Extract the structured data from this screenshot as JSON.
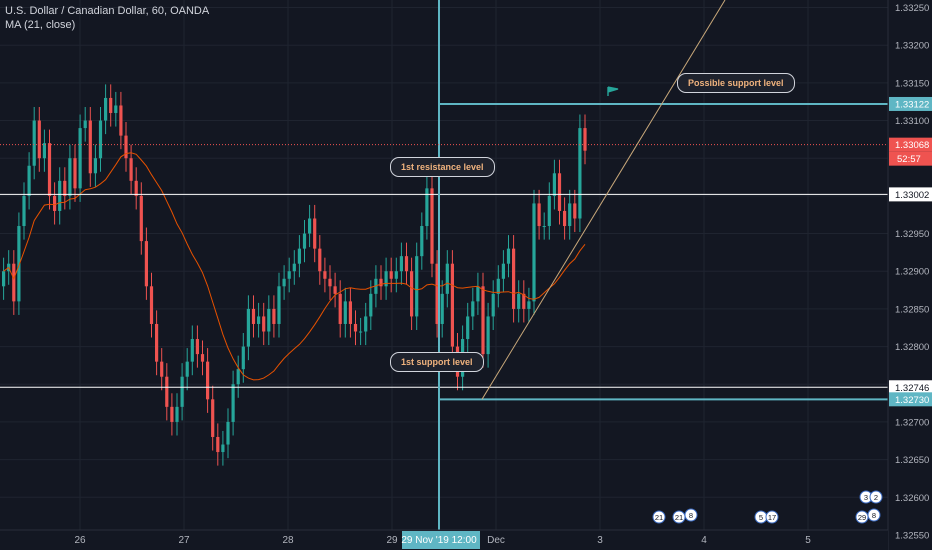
{
  "header": {
    "symbol_title": "U.S. Dollar / Canadian Dollar, 60, OANDA",
    "indicator": "MA (21, close)"
  },
  "colors": {
    "background": "#131722",
    "grid": "#1f2430",
    "up": "#26a69a",
    "down": "#ef5350",
    "ma": "#e65100",
    "level_line": "#ffffff",
    "zone_line": "#5fb6c4",
    "trendline": "#c8a87a",
    "axis_text": "#b2b5be",
    "annotation_text": "#f0b37e",
    "flag": "#26a69a"
  },
  "annotations": {
    "possible_support": "Possible support level",
    "first_resistance": "1st resistance level",
    "first_support": "1st support level"
  },
  "cursor": {
    "date_label": "29 Nov '19",
    "time_label": "12:00"
  },
  "countdown": "52:57",
  "event_markers": [
    "21",
    "21",
    "8",
    "5",
    "17",
    "3",
    "2",
    "29",
    "8"
  ],
  "chart_data": {
    "type": "candlestick",
    "title": "U.S. Dollar / Canadian Dollar, 60, OANDA",
    "indicator": "MA (21, close)",
    "ylim": [
      1.3253,
      1.3326
    ],
    "y_ticks": [
      "1.32550",
      "1.32600",
      "1.32650",
      "1.32700",
      "1.32750",
      "1.32800",
      "1.32850",
      "1.32900",
      "1.32950",
      "1.33000",
      "1.33050",
      "1.33100",
      "1.33150",
      "1.33200",
      "1.33250"
    ],
    "x_ticks": [
      "26",
      "27",
      "28",
      "29",
      "Dec",
      "3",
      "4",
      "5"
    ],
    "price_labels": [
      {
        "text": "1.33122",
        "value": 1.33122,
        "style": "zone"
      },
      {
        "text": "1.33068",
        "value": 1.33068,
        "style": "current"
      },
      {
        "text": "1.33002",
        "value": 1.33002,
        "style": "level"
      },
      {
        "text": "1.32746",
        "value": 1.32746,
        "style": "level"
      },
      {
        "text": "1.32730",
        "value": 1.3273,
        "style": "zone"
      }
    ],
    "horizontal_levels": [
      1.33002,
      1.32746
    ],
    "zone_lines": [
      1.33122,
      1.3273
    ],
    "current_price": 1.33068,
    "trendline": [
      [
        1.3273,
        1.3326
      ]
    ],
    "closes": [
      1.329,
      1.3291,
      1.3286,
      1.3296,
      1.33,
      1.3304,
      1.331,
      1.3305,
      1.3307,
      1.33,
      1.3298,
      1.3302,
      1.33,
      1.3305,
      1.3301,
      1.3309,
      1.331,
      1.3303,
      1.3305,
      1.331,
      1.3313,
      1.3311,
      1.3312,
      1.3308,
      1.3305,
      1.3302,
      1.33,
      1.3294,
      1.3288,
      1.3283,
      1.3278,
      1.3276,
      1.3272,
      1.327,
      1.3272,
      1.3276,
      1.3278,
      1.3281,
      1.3279,
      1.3278,
      1.3273,
      1.3268,
      1.3266,
      1.3267,
      1.327,
      1.3275,
      1.3277,
      1.328,
      1.3285,
      1.3283,
      1.3284,
      1.3282,
      1.3285,
      1.3283,
      1.3288,
      1.3289,
      1.329,
      1.3291,
      1.3293,
      1.3295,
      1.3297,
      1.3293,
      1.329,
      1.3289,
      1.3288,
      1.3287,
      1.3283,
      1.3286,
      1.3283,
      1.3282,
      1.3282,
      1.3284,
      1.3287,
      1.3289,
      1.3288,
      1.329,
      1.3289,
      1.329,
      1.3292,
      1.329,
      1.3284,
      1.3292,
      1.3296,
      1.3301,
      1.3291,
      1.3283,
      1.3287,
      1.3291,
      1.328,
      1.3276,
      1.3281,
      1.3284,
      1.3286,
      1.3288,
      1.3279,
      1.3284,
      1.3287,
      1.3289,
      1.3291,
      1.3293,
      1.3285,
      1.3287,
      1.3285,
      1.3286,
      1.3299,
      1.3296,
      1.3296,
      1.33,
      1.3303,
      1.3298,
      1.3296,
      1.3299,
      1.3297,
      1.3309,
      1.3306
    ]
  }
}
